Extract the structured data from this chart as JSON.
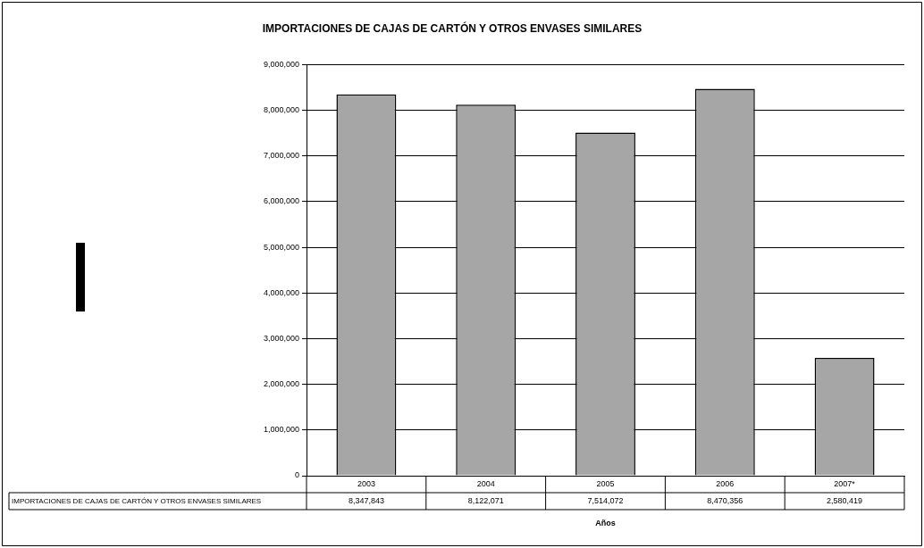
{
  "chart_data": {
    "type": "bar",
    "title": "IMPORTACIONES DE CAJAS DE CARTÓN Y OTROS ENVASES SIMILARES",
    "xlabel": "Años",
    "categories": [
      "2003",
      "2004",
      "2005",
      "2006",
      "2007*"
    ],
    "series": [
      {
        "name": "IMPORTACIONES DE CAJAS DE CARTÓN Y OTROS ENVASES SIMILARES",
        "color": "#a6a6a6",
        "values": [
          8347843,
          8122071,
          7514072,
          8470356,
          2580419
        ],
        "value_labels": [
          "8,347,843",
          "8,122,071",
          "7,514,072",
          "8,470,356",
          "2,580,419"
        ]
      }
    ],
    "ylim": [
      0,
      9000000
    ],
    "yticks": [
      {
        "value": 0,
        "label": "0"
      },
      {
        "value": 1000000,
        "label": "1,000,000"
      },
      {
        "value": 2000000,
        "label": "2,000,000"
      },
      {
        "value": 3000000,
        "label": "3,000,000"
      },
      {
        "value": 4000000,
        "label": "4,000,000"
      },
      {
        "value": 5000000,
        "label": "5,000,000"
      },
      {
        "value": 6000000,
        "label": "6,000,000"
      },
      {
        "value": 7000000,
        "label": "7,000,000"
      },
      {
        "value": 8000000,
        "label": "8,000,000"
      },
      {
        "value": 9000000,
        "label": "9,000,000"
      }
    ],
    "grid": "y",
    "legend": false
  }
}
